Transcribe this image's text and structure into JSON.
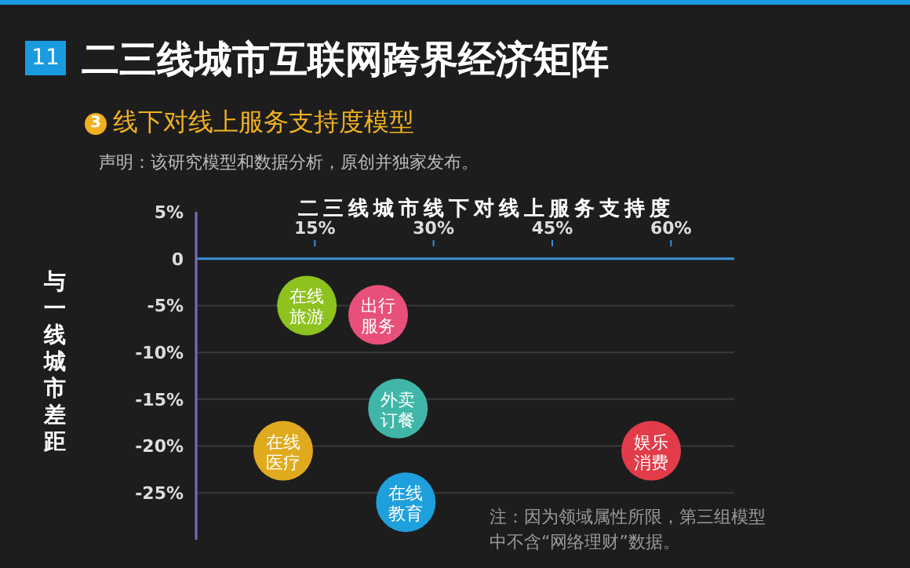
{
  "chart_data": {
    "type": "bubble",
    "title": "二三线城市互联网跨界经济矩阵",
    "subtitle": "线下对线上服务支持度模型",
    "xlabel": "二三线城市线下对线上服务支持度",
    "ylabel": "与一线城市差距",
    "annotations": [
      "11",
      "3",
      "声明：该研究模型和数据分析，原创并独家发布。",
      "注：因为领域属性所限，第三组模型中不含“网络理财”数据。"
    ],
    "series": [
      {
        "name": "在线旅游",
        "color": "#8dc21f",
        "x": [
          14
        ],
        "values": [
          -5
        ],
        "sizes": [
          1
        ]
      },
      {
        "name": "出行服务",
        "color": "#e8507a",
        "x": [
          23
        ],
        "values": [
          -6
        ],
        "sizes": [
          1
        ]
      },
      {
        "name": "外卖订餐",
        "color": "#3fb6a8",
        "x": [
          25.5
        ],
        "values": [
          -16
        ],
        "sizes": [
          1
        ]
      },
      {
        "name": "在线医疗",
        "color": "#e0aa1e",
        "x": [
          11
        ],
        "values": [
          -20.5
        ],
        "sizes": [
          1
        ]
      },
      {
        "name": "在线教育",
        "color": "#1ea0dc",
        "x": [
          26.5
        ],
        "values": [
          -26
        ],
        "sizes": [
          1
        ]
      },
      {
        "name": "娱乐消费",
        "color": "#e23c4a",
        "x": [
          57.5
        ],
        "values": [
          -20.5
        ],
        "sizes": [
          1
        ]
      }
    ],
    "xlim": [
      0,
      68
    ],
    "xticks": [
      {
        "value": 15,
        "label": "15%"
      },
      {
        "value": 30,
        "label": "30%"
      },
      {
        "value": 45,
        "label": "45%"
      },
      {
        "value": 60,
        "label": "60%"
      }
    ],
    "ylim": [
      -30,
      5
    ],
    "yticks": [
      {
        "value": 5,
        "label": "5%"
      },
      0,
      {
        "value": -5,
        "label": "-5%"
      },
      {
        "value": -10,
        "label": "-10%"
      },
      {
        "value": -15,
        "label": "-15%"
      },
      {
        "value": -20,
        "label": "-20%"
      },
      {
        "value": -25,
        "label": "-25%"
      }
    ],
    "grid": "y"
  }
}
